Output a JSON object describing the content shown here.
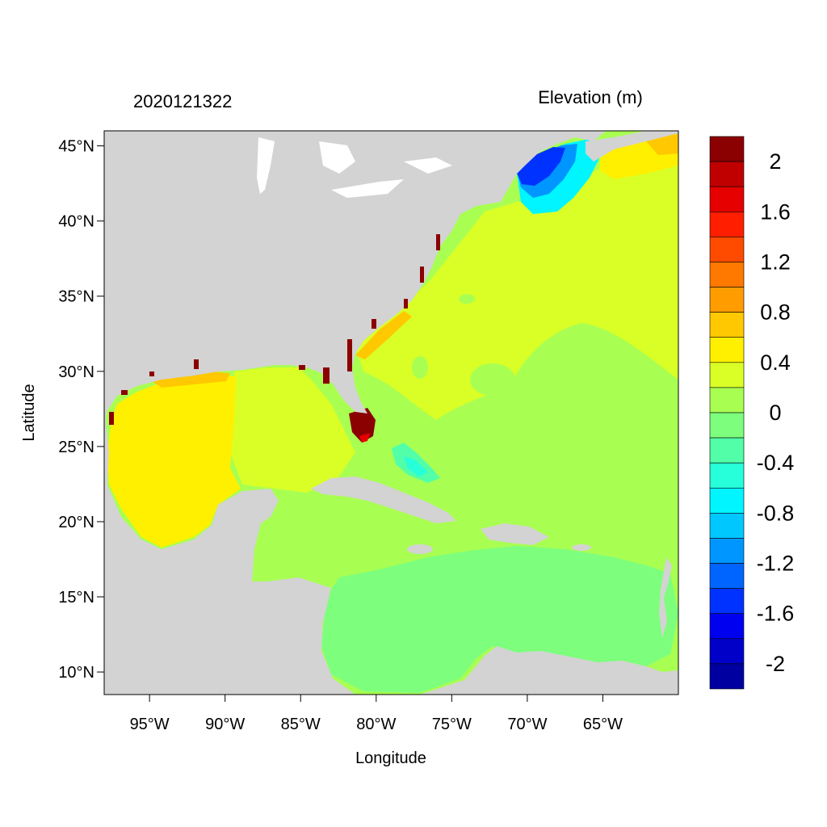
{
  "header": {
    "timestamp": "2020121322",
    "legend_title": "Elevation (m)"
  },
  "axes": {
    "xlabel": "Longitude",
    "ylabel": "Latitude",
    "lon_range": [
      -98,
      -60
    ],
    "lat_range": [
      8.5,
      46
    ],
    "x_ticks": [
      {
        "value": -95,
        "label": "95°W"
      },
      {
        "value": -90,
        "label": "90°W"
      },
      {
        "value": -85,
        "label": "85°W"
      },
      {
        "value": -80,
        "label": "80°W"
      },
      {
        "value": -75,
        "label": "75°W"
      },
      {
        "value": -70,
        "label": "70°W"
      },
      {
        "value": -65,
        "label": "65°W"
      }
    ],
    "y_ticks": [
      {
        "value": 45,
        "label": "45°N"
      },
      {
        "value": 40,
        "label": "40°N"
      },
      {
        "value": 35,
        "label": "35°N"
      },
      {
        "value": 30,
        "label": "30°N"
      },
      {
        "value": 25,
        "label": "25°N"
      },
      {
        "value": 20,
        "label": "20°N"
      },
      {
        "value": 15,
        "label": "15°N"
      },
      {
        "value": 10,
        "label": "10°N"
      }
    ]
  },
  "colorbar": {
    "range": [
      -2.2,
      2.2
    ],
    "bins": [
      {
        "from": 2.0,
        "to": 2.2,
        "color": "#8b0000"
      },
      {
        "from": 1.8,
        "to": 2.0,
        "color": "#c00000"
      },
      {
        "from": 1.6,
        "to": 1.8,
        "color": "#e60000"
      },
      {
        "from": 1.4,
        "to": 1.6,
        "color": "#ff1e00"
      },
      {
        "from": 1.2,
        "to": 1.4,
        "color": "#ff4b00"
      },
      {
        "from": 1.0,
        "to": 1.2,
        "color": "#ff7800"
      },
      {
        "from": 0.8,
        "to": 1.0,
        "color": "#ff9c00"
      },
      {
        "from": 0.6,
        "to": 0.8,
        "color": "#ffc800"
      },
      {
        "from": 0.4,
        "to": 0.6,
        "color": "#fff000"
      },
      {
        "from": 0.2,
        "to": 0.4,
        "color": "#d9ff26"
      },
      {
        "from": 0.0,
        "to": 0.2,
        "color": "#a8ff52"
      },
      {
        "from": -0.2,
        "to": 0.0,
        "color": "#7dff7d"
      },
      {
        "from": -0.4,
        "to": -0.2,
        "color": "#52ffa8"
      },
      {
        "from": -0.6,
        "to": -0.4,
        "color": "#26ffd9"
      },
      {
        "from": -0.8,
        "to": -0.6,
        "color": "#00f5ff"
      },
      {
        "from": -1.0,
        "to": -0.8,
        "color": "#00c8ff"
      },
      {
        "from": -1.2,
        "to": -1.0,
        "color": "#0096ff"
      },
      {
        "from": -1.4,
        "to": -1.2,
        "color": "#0064ff"
      },
      {
        "from": -1.6,
        "to": -1.4,
        "color": "#0032ff"
      },
      {
        "from": -1.8,
        "to": -1.6,
        "color": "#0000f0"
      },
      {
        "from": -2.0,
        "to": -1.8,
        "color": "#0000c8"
      },
      {
        "from": -2.2,
        "to": -2.0,
        "color": "#0000a0"
      }
    ],
    "tick_labels": [
      {
        "value": 2.0,
        "label": "2"
      },
      {
        "value": 1.6,
        "label": "1.6"
      },
      {
        "value": 1.2,
        "label": "1.2"
      },
      {
        "value": 0.8,
        "label": "0.8"
      },
      {
        "value": 0.4,
        "label": "0.4"
      },
      {
        "value": 0.0,
        "label": "0"
      },
      {
        "value": -0.4,
        "label": "-0.4"
      },
      {
        "value": -0.8,
        "label": "-0.8"
      },
      {
        "value": -1.2,
        "label": "-1.2"
      },
      {
        "value": -1.6,
        "label": "-1.6"
      },
      {
        "value": -2.0,
        "label": "-2"
      }
    ]
  },
  "colors": {
    "land": "#d3d3d3",
    "ocean_background": "#a8ff52",
    "frame": "#000000"
  }
}
